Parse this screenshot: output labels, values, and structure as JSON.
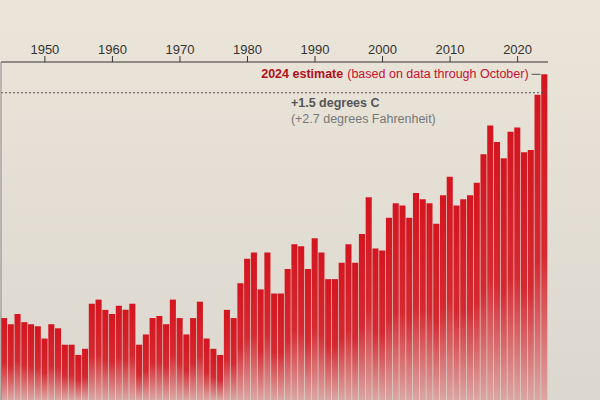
{
  "chart_data": {
    "type": "bar",
    "x": [
      1944,
      1945,
      1946,
      1947,
      1948,
      1949,
      1950,
      1951,
      1952,
      1953,
      1954,
      1955,
      1956,
      1957,
      1958,
      1959,
      1960,
      1961,
      1962,
      1963,
      1964,
      1965,
      1966,
      1967,
      1968,
      1969,
      1970,
      1971,
      1972,
      1973,
      1974,
      1975,
      1976,
      1977,
      1978,
      1979,
      1980,
      1981,
      1982,
      1983,
      1984,
      1985,
      1986,
      1987,
      1988,
      1989,
      1990,
      1991,
      1992,
      1993,
      1994,
      1995,
      1996,
      1997,
      1998,
      1999,
      2000,
      2001,
      2002,
      2003,
      2004,
      2005,
      2006,
      2007,
      2008,
      2009,
      2010,
      2011,
      2012,
      2013,
      2014,
      2015,
      2016,
      2017,
      2018,
      2019,
      2020,
      2021,
      2022,
      2023,
      2024
    ],
    "values": [
      0.4,
      0.37,
      0.42,
      0.38,
      0.37,
      0.36,
      0.3,
      0.37,
      0.35,
      0.27,
      0.27,
      0.22,
      0.25,
      0.47,
      0.49,
      0.44,
      0.42,
      0.46,
      0.44,
      0.47,
      0.27,
      0.32,
      0.4,
      0.41,
      0.37,
      0.49,
      0.4,
      0.32,
      0.4,
      0.48,
      0.3,
      0.25,
      0.22,
      0.44,
      0.4,
      0.57,
      0.69,
      0.72,
      0.54,
      0.72,
      0.52,
      0.52,
      0.64,
      0.76,
      0.75,
      0.64,
      0.79,
      0.72,
      0.59,
      0.59,
      0.67,
      0.76,
      0.67,
      0.81,
      0.99,
      0.74,
      0.73,
      0.89,
      0.96,
      0.95,
      0.89,
      1.01,
      0.98,
      0.96,
      0.86,
      1.0,
      1.09,
      0.95,
      0.98,
      1.0,
      1.06,
      1.2,
      1.34,
      1.26,
      1.18,
      1.31,
      1.33,
      1.21,
      1.22,
      1.49,
      1.59
    ],
    "color": "#d4151f",
    "xlim": [
      1943.5,
      2024.5
    ],
    "xticks": [
      1950,
      1960,
      1970,
      1980,
      1990,
      2000,
      2010,
      2020
    ],
    "ylim": [
      0,
      1.65
    ],
    "grid": false,
    "tick_labels": "x",
    "annotation": {
      "text": "2024 estimate",
      "detail": "(based on data through October)",
      "x": 2024,
      "y": 1.59
    },
    "reference_line": {
      "y": 1.5,
      "label": "+1.5 degrees C",
      "sublabel": "(+2.7 degrees Fahrenheit)"
    }
  }
}
